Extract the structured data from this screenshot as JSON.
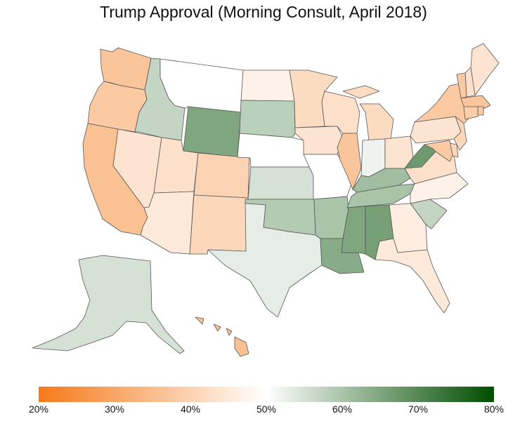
{
  "title": "Trump Approval (Morning Consult, April 2018)",
  "legend": {
    "min": 20,
    "max": 80,
    "ticks": [
      "20%",
      "30%",
      "40%",
      "50%",
      "60%",
      "70%",
      "80%"
    ],
    "tick_values": [
      20,
      30,
      40,
      50,
      60,
      70,
      80
    ],
    "colors": {
      "low": "#f57a18",
      "mid": "#ffffff",
      "high": "#004d00"
    }
  },
  "map_data": {
    "variable": "approval_percent",
    "states": {
      "WA": 37,
      "OR": 38,
      "CA": 36,
      "NV": 44,
      "ID": 57,
      "MT": 50,
      "WY": 65,
      "UT": 43,
      "AZ": 45,
      "CO": 40,
      "NM": 41,
      "ND": 47,
      "SD": 58,
      "NE": 50,
      "KS": 55,
      "OK": 59,
      "TX": 53,
      "MN": 42,
      "IA": 44,
      "MO": 50,
      "AR": 60,
      "LA": 64,
      "WI": 43,
      "IL": 37,
      "MI": 42,
      "IN": 52,
      "OH": 44,
      "KY": 61,
      "TN": 60,
      "MS": 65,
      "AL": 66,
      "WV": 67,
      "PA": 44,
      "NY": 38,
      "VA": 43,
      "NC": 47,
      "SC": 57,
      "GA": 46,
      "FL": 45,
      "ME": 44,
      "NH": 43,
      "VT": 38,
      "MA": 37,
      "RI": 38,
      "CT": 39,
      "NJ": 41,
      "DE": 41,
      "MD": 38,
      "AK": 55,
      "HI": 36
    }
  }
}
